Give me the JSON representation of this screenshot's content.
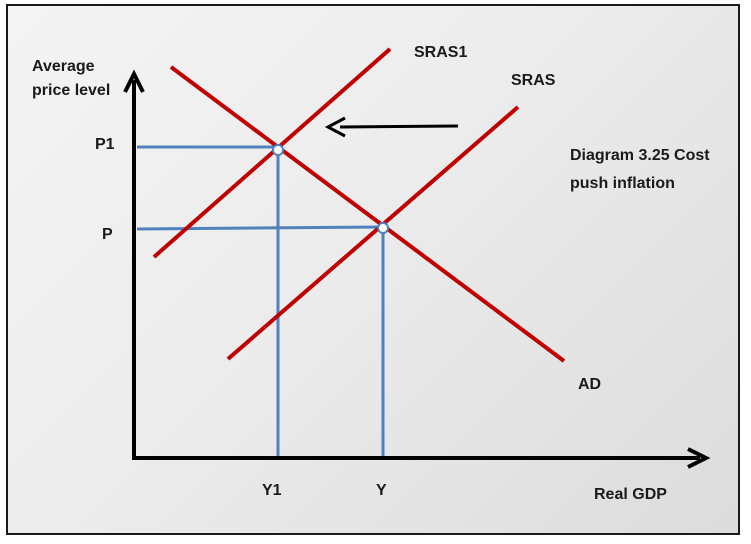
{
  "diagram": {
    "y_axis_label": "Average price level",
    "x_axis_label": "Real GDP",
    "price_levels": [
      {
        "label": "P1"
      },
      {
        "label": "P"
      }
    ],
    "output_levels": [
      {
        "label": "Y1"
      },
      {
        "label": "Y"
      }
    ],
    "curves": [
      {
        "label": "SRAS1",
        "kind": "short-run aggregate supply (shifted)"
      },
      {
        "label": "SRAS",
        "kind": "short-run aggregate supply"
      },
      {
        "label": "AD",
        "kind": "aggregate demand"
      }
    ],
    "caption": "Diagram 3.25 Cost push inflation",
    "colors": {
      "curves": "#c00000",
      "guides": "#4f81bd",
      "axes": "#000000",
      "arrow": "#000000"
    }
  }
}
